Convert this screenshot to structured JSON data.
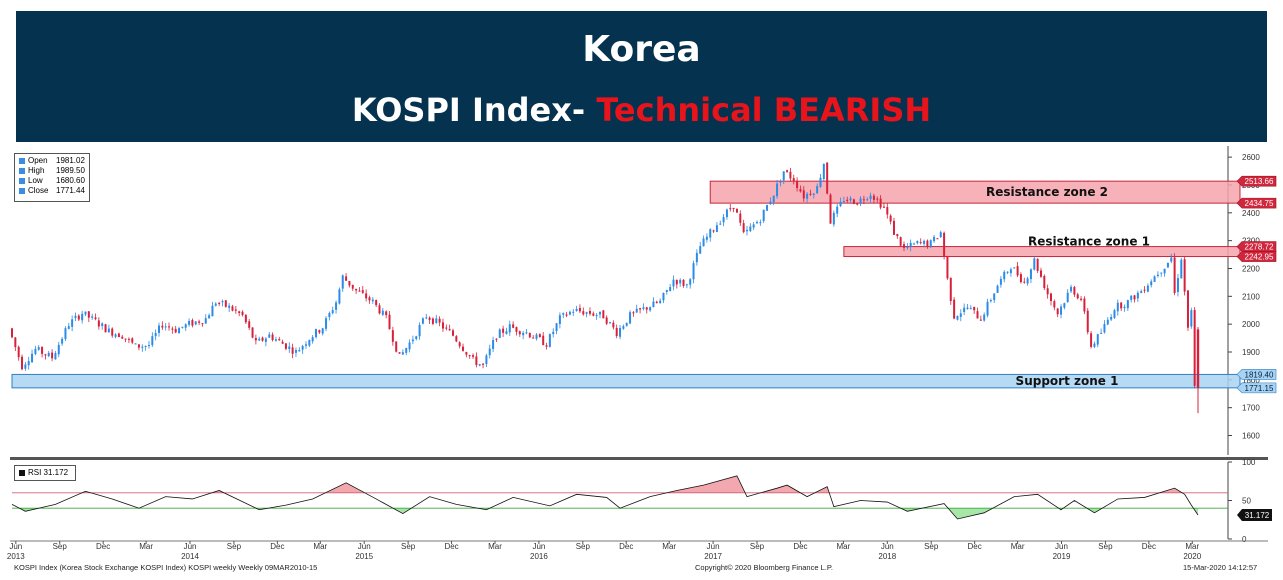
{
  "banner": {
    "title": "Korea",
    "subtitle_main": "KOSPI Index- ",
    "subtitle_highlight": "Technical BEARISH"
  },
  "legend": {
    "items": [
      {
        "label": "Open",
        "value": "1981.02"
      },
      {
        "label": "High",
        "value": "1989.50"
      },
      {
        "label": "Low",
        "value": "1680.60"
      },
      {
        "label": "Close",
        "value": "1771.44"
      }
    ]
  },
  "rsi_legend": {
    "label": "RSI 31.172"
  },
  "footer": {
    "left": "KOSPI Index (Korea Stock Exchange KOSPI Index) KOSPI weekly  Weekly 09MAR2010-15",
    "center": "Copyright© 2020 Bloomberg Finance L.P.",
    "right": "15-Mar-2020 14:12:57"
  },
  "colors": {
    "banner": "#04324f",
    "bearish_text": "#e8141c",
    "resistance_fill": "#f5a3ad",
    "support_fill": "#a9d3f2",
    "up_candle": "#2a8be8",
    "down_candle": "#d8203a",
    "rsi_overbought_fill": "#f2a8ae",
    "rsi_oversold_fill": "#a8e6a8"
  },
  "chart_data": [
    {
      "type": "candlestick",
      "timeframe": "weekly",
      "x_range": [
        "2013-05-24",
        "2020-03-13"
      ],
      "ylim": [
        1530,
        2640
      ],
      "y_ticks": [
        1600,
        1700,
        1800,
        1900,
        2000,
        2100,
        2200,
        2300,
        2400,
        2500,
        2600
      ],
      "x_tick_labels": [
        {
          "month": "Jun",
          "year": "2013",
          "date": "2013-06-01"
        },
        {
          "month": "Sep",
          "year": "",
          "date": "2013-09-01"
        },
        {
          "month": "Dec",
          "year": "",
          "date": "2013-12-01"
        },
        {
          "month": "Mar",
          "year": "",
          "date": "2014-03-01"
        },
        {
          "month": "Jun",
          "year": "2014",
          "date": "2014-06-01"
        },
        {
          "month": "Sep",
          "year": "",
          "date": "2014-09-01"
        },
        {
          "month": "Dec",
          "year": "",
          "date": "2014-12-01"
        },
        {
          "month": "Mar",
          "year": "",
          "date": "2015-03-01"
        },
        {
          "month": "Jun",
          "year": "2015",
          "date": "2015-06-01"
        },
        {
          "month": "Sep",
          "year": "",
          "date": "2015-09-01"
        },
        {
          "month": "Dec",
          "year": "",
          "date": "2015-12-01"
        },
        {
          "month": "Mar",
          "year": "",
          "date": "2016-03-01"
        },
        {
          "month": "Jun",
          "year": "2016",
          "date": "2016-06-01"
        },
        {
          "month": "Sep",
          "year": "",
          "date": "2016-09-01"
        },
        {
          "month": "Dec",
          "year": "",
          "date": "2016-12-01"
        },
        {
          "month": "Mar",
          "year": "",
          "date": "2017-03-01"
        },
        {
          "month": "Jun",
          "year": "2017",
          "date": "2017-06-01"
        },
        {
          "month": "Sep",
          "year": "",
          "date": "2017-09-01"
        },
        {
          "month": "Dec",
          "year": "",
          "date": "2017-12-01"
        },
        {
          "month": "Mar",
          "year": "",
          "date": "2018-03-01"
        },
        {
          "month": "Jun",
          "year": "2018",
          "date": "2018-06-01"
        },
        {
          "month": "Sep",
          "year": "",
          "date": "2018-09-01"
        },
        {
          "month": "Dec",
          "year": "",
          "date": "2018-12-01"
        },
        {
          "month": "Mar",
          "year": "",
          "date": "2019-03-01"
        },
        {
          "month": "Jun",
          "year": "2019",
          "date": "2019-06-01"
        },
        {
          "month": "Sep",
          "year": "",
          "date": "2019-09-01"
        },
        {
          "month": "Dec",
          "year": "",
          "date": "2019-12-01"
        },
        {
          "month": "Mar",
          "year": "2020",
          "date": "2020-03-01"
        }
      ],
      "price_path": [
        [
          "2013-05-24",
          1985
        ],
        [
          "2013-06-21",
          1850
        ],
        [
          "2013-07-19",
          1910
        ],
        [
          "2013-08-23",
          1880
        ],
        [
          "2013-09-27",
          2000
        ],
        [
          "2013-10-25",
          2040
        ],
        [
          "2013-11-22",
          2010
        ],
        [
          "2013-12-20",
          1975
        ],
        [
          "2014-01-17",
          1960
        ],
        [
          "2014-02-14",
          1920
        ],
        [
          "2014-03-14",
          1925
        ],
        [
          "2014-04-11",
          2000
        ],
        [
          "2014-05-09",
          1980
        ],
        [
          "2014-06-06",
          2000
        ],
        [
          "2014-07-11",
          2020
        ],
        [
          "2014-08-01",
          2080
        ],
        [
          "2014-08-29",
          2060
        ],
        [
          "2014-09-26",
          2030
        ],
        [
          "2014-10-24",
          1930
        ],
        [
          "2014-11-21",
          1960
        ],
        [
          "2014-12-19",
          1930
        ],
        [
          "2015-01-16",
          1900
        ],
        [
          "2015-02-13",
          1950
        ],
        [
          "2015-03-13",
          1990
        ],
        [
          "2015-04-10",
          2080
        ],
        [
          "2015-04-24",
          2170
        ],
        [
          "2015-05-22",
          2120
        ],
        [
          "2015-06-26",
          2080
        ],
        [
          "2015-07-24",
          2020
        ],
        [
          "2015-08-21",
          1880
        ],
        [
          "2015-09-18",
          1950
        ],
        [
          "2015-10-16",
          2030
        ],
        [
          "2015-11-13",
          2000
        ],
        [
          "2015-12-11",
          1960
        ],
        [
          "2016-01-22",
          1870
        ],
        [
          "2016-02-12",
          1850
        ],
        [
          "2016-03-11",
          1960
        ],
        [
          "2016-04-08",
          1990
        ],
        [
          "2016-05-13",
          1970
        ],
        [
          "2016-06-24",
          1930
        ],
        [
          "2016-07-22",
          2020
        ],
        [
          "2016-08-19",
          2050
        ],
        [
          "2016-09-23",
          2040
        ],
        [
          "2016-10-21",
          2030
        ],
        [
          "2016-11-18",
          1970
        ],
        [
          "2016-12-16",
          2030
        ],
        [
          "2017-01-20",
          2060
        ],
        [
          "2017-02-17",
          2080
        ],
        [
          "2017-03-17",
          2160
        ],
        [
          "2017-04-14",
          2140
        ],
        [
          "2017-05-12",
          2280
        ],
        [
          "2017-06-16",
          2360
        ],
        [
          "2017-07-21",
          2430
        ],
        [
          "2017-08-11",
          2320
        ],
        [
          "2017-09-15",
          2380
        ],
        [
          "2017-10-13",
          2470
        ],
        [
          "2017-11-03",
          2550
        ],
        [
          "2017-11-24",
          2520
        ],
        [
          "2017-12-15",
          2460
        ],
        [
          "2018-01-12",
          2490
        ],
        [
          "2018-01-26",
          2580
        ],
        [
          "2018-02-09",
          2370
        ],
        [
          "2018-03-09",
          2450
        ],
        [
          "2018-04-06",
          2440
        ],
        [
          "2018-05-04",
          2470
        ],
        [
          "2018-06-01",
          2420
        ],
        [
          "2018-06-22",
          2330
        ],
        [
          "2018-07-13",
          2270
        ],
        [
          "2018-08-10",
          2290
        ],
        [
          "2018-09-07",
          2290
        ],
        [
          "2018-09-28",
          2330
        ],
        [
          "2018-10-12",
          2160
        ],
        [
          "2018-10-26",
          2030
        ],
        [
          "2018-11-23",
          2060
        ],
        [
          "2018-12-21",
          2020
        ],
        [
          "2019-01-25",
          2140
        ],
        [
          "2019-02-22",
          2210
        ],
        [
          "2019-03-22",
          2150
        ],
        [
          "2019-04-12",
          2230
        ],
        [
          "2019-05-10",
          2110
        ],
        [
          "2019-05-31",
          2040
        ],
        [
          "2019-06-28",
          2130
        ],
        [
          "2019-07-19",
          2090
        ],
        [
          "2019-08-09",
          1920
        ],
        [
          "2019-08-30",
          1970
        ],
        [
          "2019-09-27",
          2060
        ],
        [
          "2019-10-25",
          2080
        ],
        [
          "2019-11-22",
          2120
        ],
        [
          "2019-12-13",
          2160
        ],
        [
          "2020-01-10",
          2210
        ],
        [
          "2020-01-24",
          2240
        ],
        [
          "2020-01-31",
          2110
        ],
        [
          "2020-02-14",
          2240
        ],
        [
          "2020-02-28",
          1990
        ],
        [
          "2020-03-06",
          2040
        ],
        [
          "2020-03-13",
          1771
        ]
      ],
      "last_candle": {
        "open": 1981.02,
        "high": 1989.5,
        "low": 1680.6,
        "close": 1771.44
      },
      "zones": [
        {
          "name": "Resistance zone 2",
          "from": "2017-05-26",
          "upper": 2513.66,
          "lower": 2434.75
        },
        {
          "name": "Resistance zone 1",
          "from": "2018-03-02",
          "upper": 2278.72,
          "lower": 2242.95
        },
        {
          "name": "Support zone 1",
          "from": "2013-05-24",
          "upper": 1819.4,
          "lower": 1771.15
        }
      ],
      "price_tags": [
        {
          "value": 2513.66,
          "label": "2513.66",
          "zone": "resistance"
        },
        {
          "value": 2434.75,
          "label": "2434.75",
          "zone": "resistance"
        },
        {
          "value": 2278.72,
          "label": "2278.72",
          "zone": "resistance"
        },
        {
          "value": 2242.95,
          "label": "2242.95",
          "zone": "resistance"
        },
        {
          "value": 1819.4,
          "label": "1819.40",
          "zone": "support"
        },
        {
          "value": 1771.15,
          "label": "1771.15",
          "zone": "support"
        }
      ]
    },
    {
      "type": "line",
      "name": "RSI",
      "ylim": [
        0,
        100
      ],
      "y_ticks": [
        0,
        50,
        100
      ],
      "overbought": 60,
      "oversold": 40,
      "last_value": 31.172,
      "last_label": "31.172",
      "path": [
        [
          "2013-05-24",
          45
        ],
        [
          "2013-06-21",
          36
        ],
        [
          "2013-08-23",
          45
        ],
        [
          "2013-10-25",
          62
        ],
        [
          "2013-12-20",
          52
        ],
        [
          "2014-02-14",
          40
        ],
        [
          "2014-04-11",
          55
        ],
        [
          "2014-06-06",
          52
        ],
        [
          "2014-08-01",
          63
        ],
        [
          "2014-10-24",
          38
        ],
        [
          "2014-12-19",
          44
        ],
        [
          "2015-02-13",
          52
        ],
        [
          "2015-04-24",
          73
        ],
        [
          "2015-06-26",
          52
        ],
        [
          "2015-08-21",
          33
        ],
        [
          "2015-10-16",
          55
        ],
        [
          "2015-12-11",
          45
        ],
        [
          "2016-02-12",
          38
        ],
        [
          "2016-04-08",
          54
        ],
        [
          "2016-06-24",
          43
        ],
        [
          "2016-08-19",
          58
        ],
        [
          "2016-10-21",
          54
        ],
        [
          "2016-11-18",
          40
        ],
        [
          "2017-01-20",
          55
        ],
        [
          "2017-03-17",
          63
        ],
        [
          "2017-05-12",
          70
        ],
        [
          "2017-07-21",
          82
        ],
        [
          "2017-08-11",
          55
        ],
        [
          "2017-10-13",
          66
        ],
        [
          "2017-11-03",
          70
        ],
        [
          "2017-12-15",
          55
        ],
        [
          "2018-01-26",
          68
        ],
        [
          "2018-02-09",
          42
        ],
        [
          "2018-04-06",
          50
        ],
        [
          "2018-06-01",
          48
        ],
        [
          "2018-07-13",
          36
        ],
        [
          "2018-09-28",
          46
        ],
        [
          "2018-10-26",
          26
        ],
        [
          "2018-12-21",
          34
        ],
        [
          "2019-02-22",
          55
        ],
        [
          "2019-04-12",
          58
        ],
        [
          "2019-05-31",
          38
        ],
        [
          "2019-06-28",
          50
        ],
        [
          "2019-08-09",
          34
        ],
        [
          "2019-09-27",
          52
        ],
        [
          "2019-11-22",
          54
        ],
        [
          "2020-01-24",
          66
        ],
        [
          "2020-02-14",
          58
        ],
        [
          "2020-02-28",
          44
        ],
        [
          "2020-03-13",
          31.172
        ]
      ]
    }
  ]
}
